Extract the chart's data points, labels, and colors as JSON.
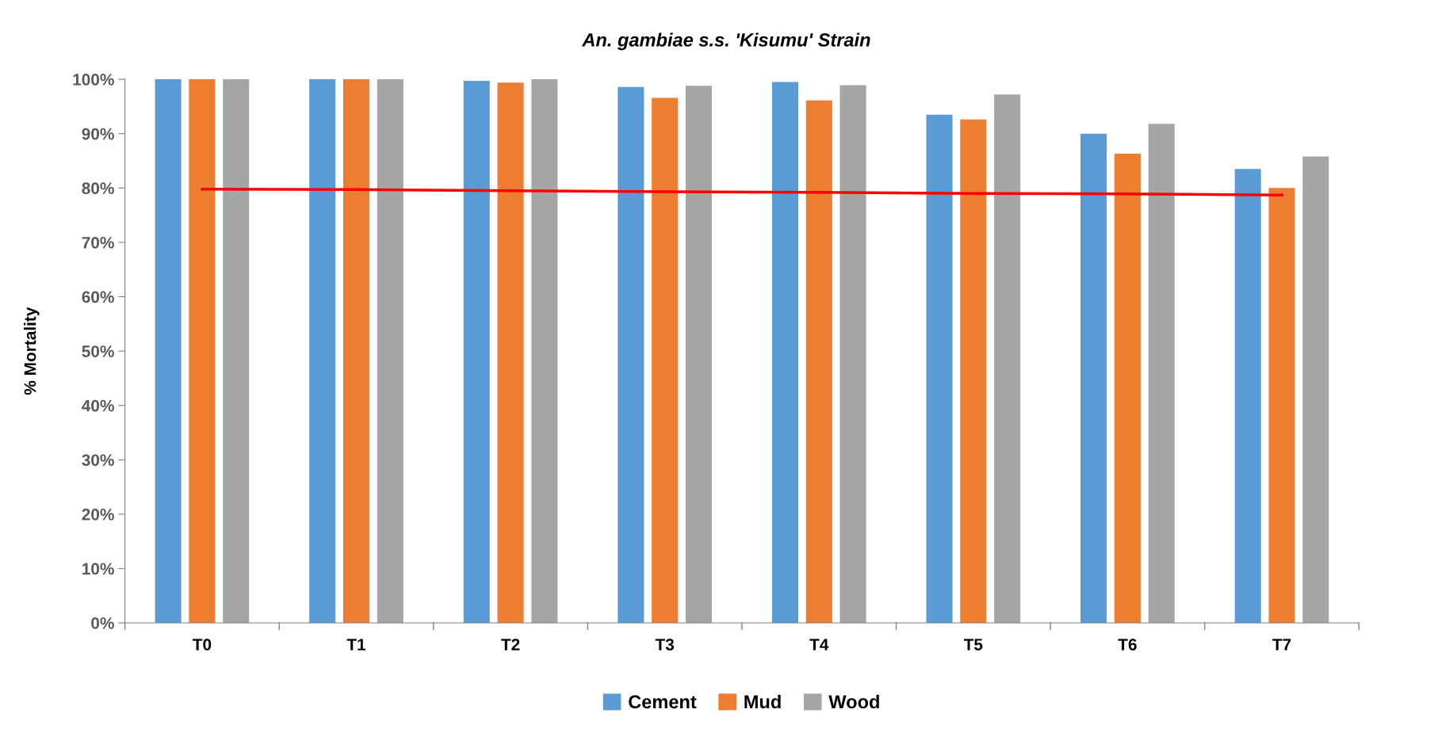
{
  "chart_data": {
    "type": "bar",
    "title": "An. gambiae s.s. 'Kisumu' Strain",
    "ylabel": "% Mortality",
    "categories": [
      "T0",
      "T1",
      "T2",
      "T3",
      "T4",
      "T5",
      "T6",
      "T7"
    ],
    "series": [
      {
        "name": "Cement",
        "color": "#5b9bd5",
        "values": [
          100,
          100,
          99.7,
          98.6,
          99.5,
          93.5,
          90.0,
          83.5
        ]
      },
      {
        "name": "Mud",
        "color": "#ed7d31",
        "values": [
          100,
          100,
          99.4,
          96.6,
          96.1,
          92.6,
          86.3,
          80.0
        ]
      },
      {
        "name": "Wood",
        "color": "#a5a5a5",
        "values": [
          100,
          100,
          100,
          98.8,
          98.9,
          97.2,
          91.8,
          85.8
        ]
      },
      {
        "type": "line",
        "color": "#ff0000",
        "values": [
          79.8,
          79.7,
          79.5,
          79.3,
          79.2,
          79.0,
          78.9,
          78.7
        ]
      }
    ],
    "ylim": [
      0,
      100
    ],
    "yticks": [
      {
        "value": 0,
        "label": "0%"
      },
      {
        "value": 10,
        "label": "10%"
      },
      {
        "value": 20,
        "label": "20%"
      },
      {
        "value": 30,
        "label": "30%"
      },
      {
        "value": 40,
        "label": "40%"
      },
      {
        "value": 50,
        "label": "50%"
      },
      {
        "value": 60,
        "label": "60%"
      },
      {
        "value": 70,
        "label": "70%"
      },
      {
        "value": 80,
        "label": "80%"
      },
      {
        "value": 90,
        "label": "90%"
      },
      {
        "value": 100,
        "label": "100%"
      }
    ],
    "grid": false,
    "legend": "bottom",
    "marker": "none",
    "line_style": "solid"
  }
}
